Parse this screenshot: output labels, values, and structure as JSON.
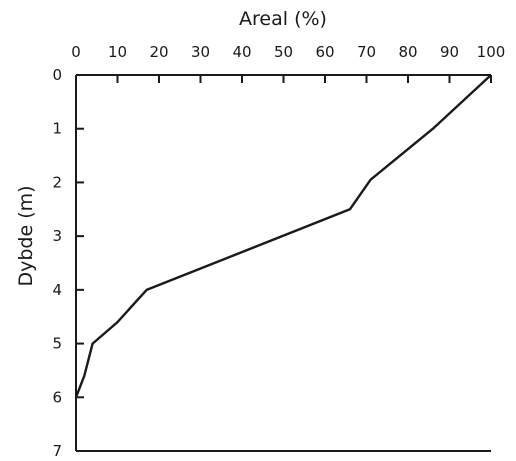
{
  "chart_data": {
    "type": "line",
    "title": "Areal (%)",
    "xlabel": "Areal (%)",
    "ylabel": "Dybde (m)",
    "x_axis_position": "top",
    "y_axis_inverted": true,
    "xlim": [
      0,
      100
    ],
    "ylim": [
      0,
      7
    ],
    "x_ticks": [
      "0",
      "10",
      "20",
      "30",
      "40",
      "50",
      "60",
      "70",
      "80",
      "90",
      "100"
    ],
    "y_ticks": [
      "0",
      "1",
      "2",
      "3",
      "4",
      "5",
      "6",
      "7"
    ],
    "grid": false,
    "series": [
      {
        "x": [
          100,
          86,
          71,
          66,
          17,
          10,
          4,
          2,
          0
        ],
        "y": [
          0,
          1,
          1.95,
          2.5,
          4,
          4.6,
          5,
          5.6,
          6
        ]
      }
    ]
  }
}
